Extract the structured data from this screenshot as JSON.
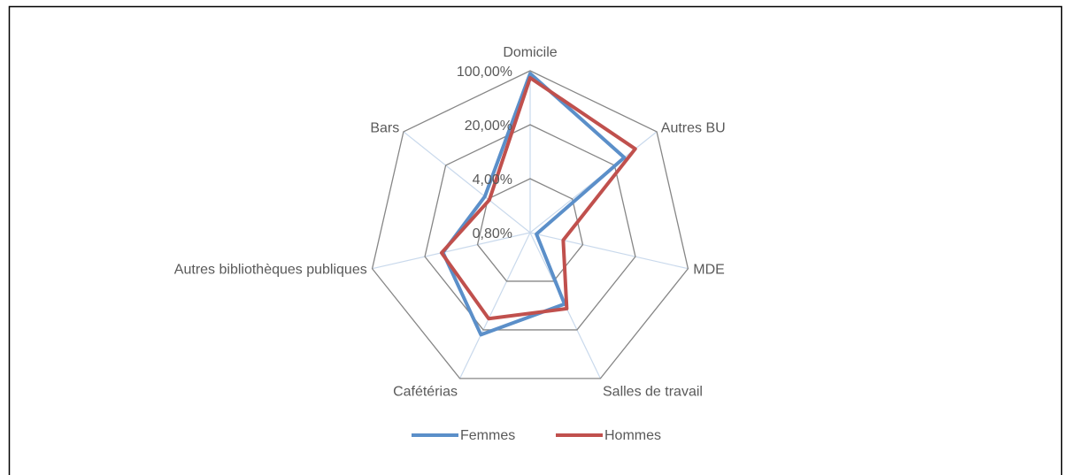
{
  "chart_data": {
    "type": "radar",
    "categories": [
      "Domicile",
      "Autres BU",
      "MDE",
      "Salles de travail",
      "Cafétérias",
      "Autres bibliothèques publiques",
      "Bars"
    ],
    "series": [
      {
        "name": "Femmes",
        "color": "#5b8fc9",
        "values": [
          92,
          29,
          0.97,
          8.5,
          23.5,
          11.5,
          4.5
        ]
      },
      {
        "name": "Hommes",
        "color": "#c0504d",
        "values": [
          81,
          44,
          2.2,
          9.9,
          13.8,
          12,
          3.8
        ]
      }
    ],
    "log_scale": true,
    "ylim": [
      0.8,
      100
    ],
    "yticks": [
      {
        "value": 0.8,
        "label": "0,80%"
      },
      {
        "value": 4,
        "label": "4,00%"
      },
      {
        "value": 20,
        "label": "20,00%"
      },
      {
        "value": 100,
        "label": "100,00%"
      }
    ],
    "grid": true,
    "legend": "bottom"
  }
}
